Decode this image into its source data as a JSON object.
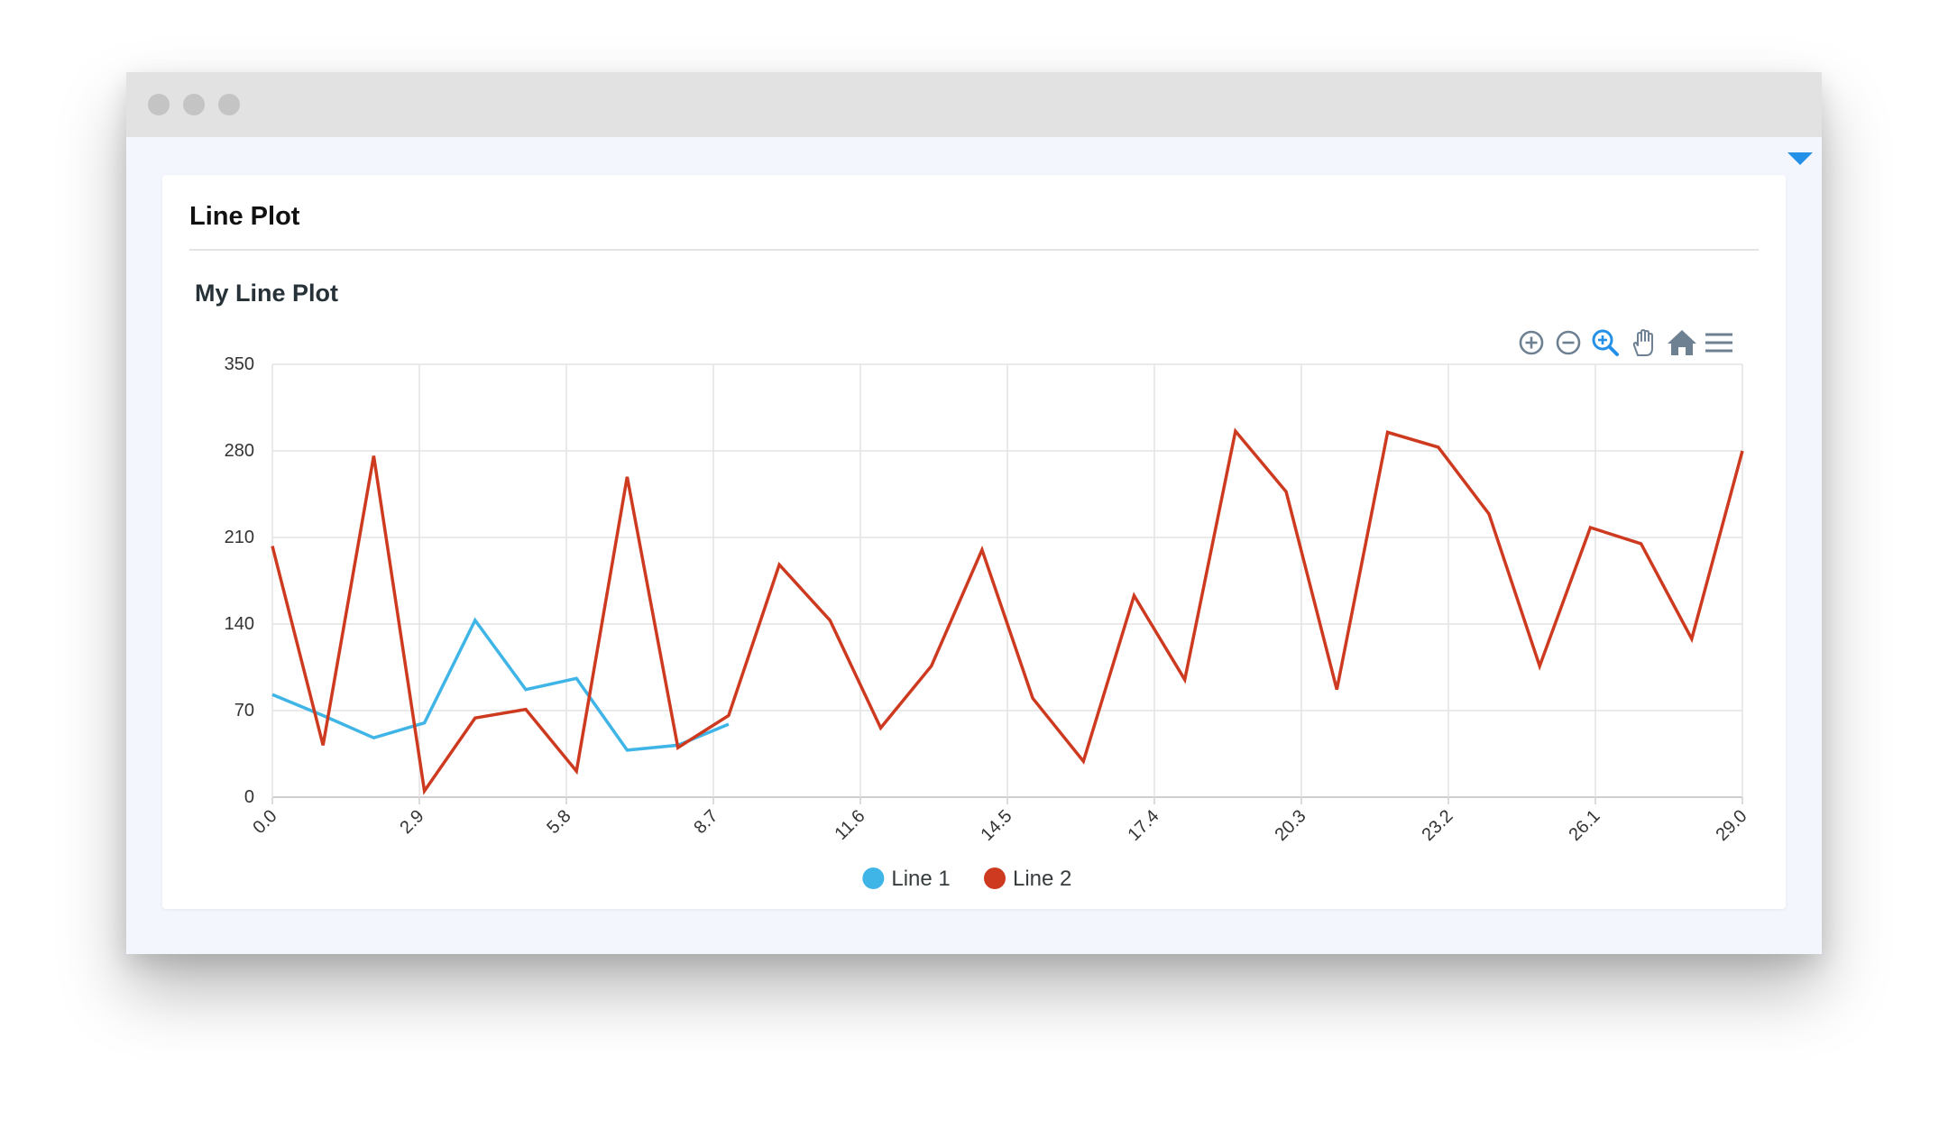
{
  "window": {
    "dots": [
      "#c4c4c4",
      "#c4c4c4",
      "#c4c4c4"
    ]
  },
  "card": {
    "title": "Line Plot"
  },
  "toolbar": {
    "icons": [
      "zoom-in-icon",
      "zoom-out-icon",
      "selection-zoom-icon",
      "pan-icon",
      "reset-zoom-home-icon",
      "menu-icon"
    ],
    "accent": "#2490e8",
    "icon_color": "#6e8192"
  },
  "chart_data": {
    "type": "line",
    "title": "My Line Plot",
    "x_ticks": [
      "0.0",
      "2.9",
      "5.8",
      "8.7",
      "11.6",
      "14.5",
      "17.4",
      "20.3",
      "23.2",
      "26.1",
      "29.0"
    ],
    "y_ticks": [
      "0",
      "70",
      "140",
      "210",
      "280",
      "350"
    ],
    "xlim": [
      0,
      29
    ],
    "ylim": [
      0,
      350
    ],
    "grid": true,
    "legend_position": "bottom-center",
    "series": [
      {
        "name": "Line 1",
        "color": "#3fb4e6",
        "x": [
          0,
          1,
          2,
          3,
          4,
          5,
          6,
          7,
          8,
          9
        ],
        "y": [
          83,
          66,
          48,
          60,
          143,
          87,
          96,
          38,
          42,
          59
        ]
      },
      {
        "name": "Line 2",
        "color": "#cd3a1f",
        "x": [
          0,
          1,
          2,
          3,
          4,
          5,
          6,
          7,
          8,
          9,
          10,
          11,
          12,
          13,
          14,
          15,
          16,
          17,
          18,
          19,
          20,
          21,
          22,
          23,
          24,
          25,
          26,
          27,
          28,
          29
        ],
        "y": [
          203,
          42,
          276,
          5,
          64,
          71,
          21,
          259,
          40,
          66,
          188,
          143,
          56,
          106,
          200,
          80,
          29,
          163,
          95,
          296,
          247,
          87,
          295,
          283,
          229,
          106,
          218,
          205,
          128,
          280
        ]
      }
    ]
  }
}
